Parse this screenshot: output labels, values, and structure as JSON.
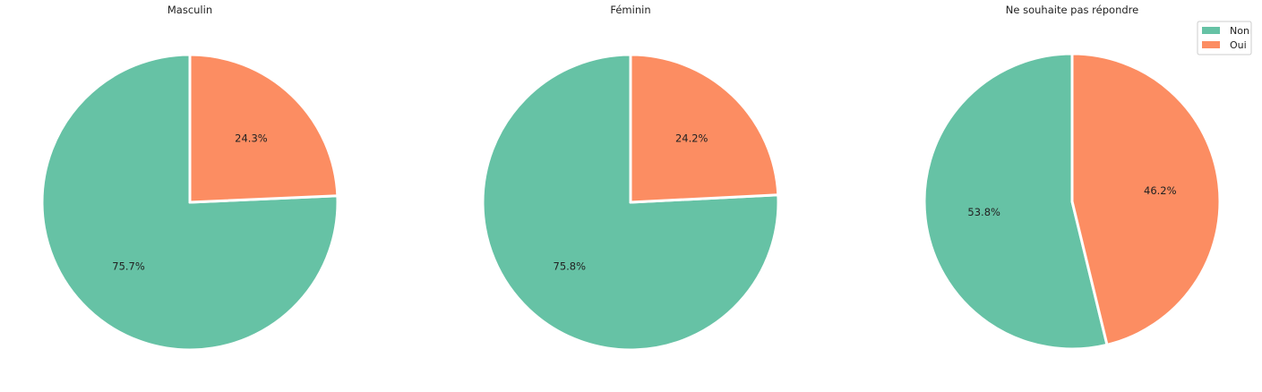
{
  "chart_data": [
    {
      "type": "pie",
      "title": "Masculin",
      "labels": [
        "Non",
        "Oui"
      ],
      "values": [
        75.7,
        24.3
      ],
      "value_labels": [
        "75.7%",
        "24.3%"
      ],
      "start_angle_deg": 90,
      "direction": "counterclockwise",
      "explode": true
    },
    {
      "type": "pie",
      "title": "Féminin",
      "labels": [
        "Non",
        "Oui"
      ],
      "values": [
        75.8,
        24.2
      ],
      "value_labels": [
        "75.8%",
        "24.2%"
      ],
      "start_angle_deg": 90,
      "direction": "counterclockwise",
      "explode": true
    },
    {
      "type": "pie",
      "title": "Ne souhaite pas répondre",
      "labels": [
        "Non",
        "Oui"
      ],
      "values": [
        53.8,
        46.2
      ],
      "value_labels": [
        "53.8%",
        "46.2%"
      ],
      "start_angle_deg": 90,
      "direction": "counterclockwise",
      "explode": true
    }
  ],
  "legend": {
    "placement": "top-right",
    "entries": [
      {
        "label": "Non",
        "color": "#66c2a5"
      },
      {
        "label": "Oui",
        "color": "#fc8d62"
      }
    ]
  },
  "colors": {
    "Non": "#66c2a5",
    "Oui": "#fc8d62"
  }
}
